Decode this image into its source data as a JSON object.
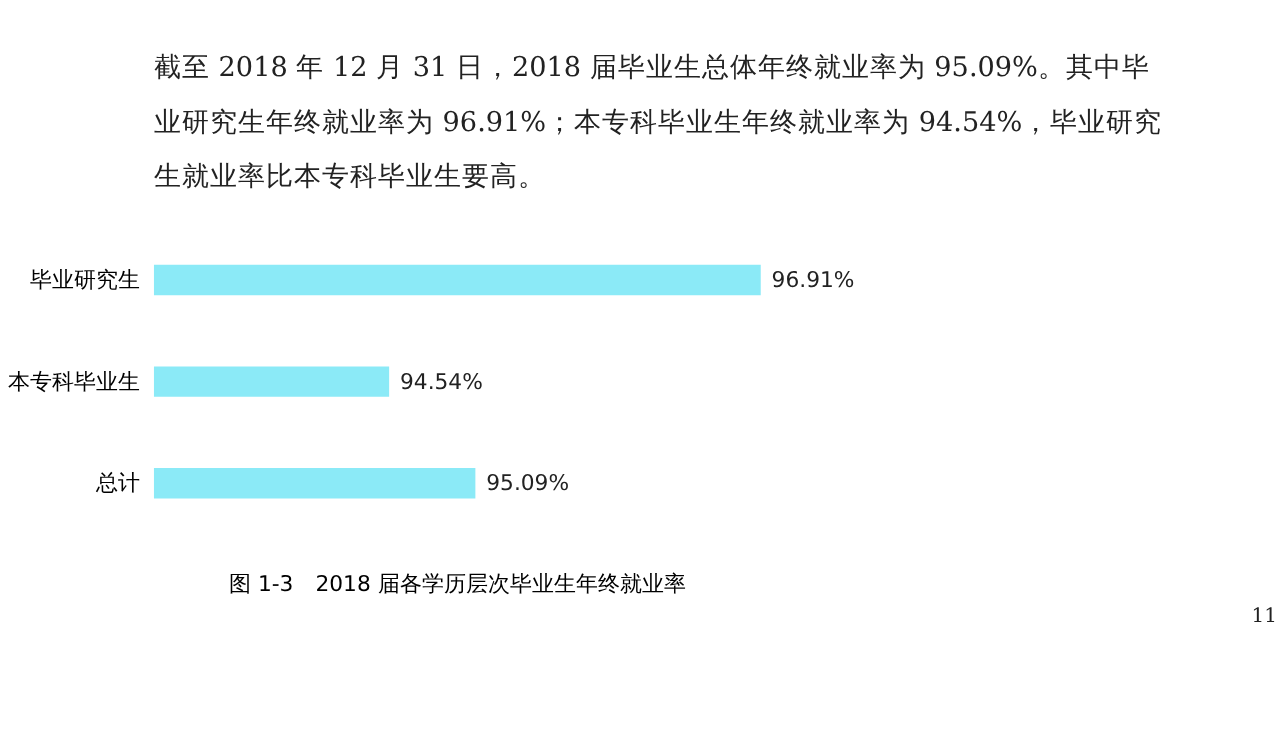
{
  "chart_data": {
    "type": "bar",
    "orientation": "horizontal",
    "title": "图 1-3　2018 届各学历层次毕业生年终就业率",
    "categories": [
      "毕业研究生",
      "本专科毕业生",
      "总计"
    ],
    "values": [
      96.91,
      94.54,
      95.09
    ],
    "value_labels": [
      "96.91%",
      "94.54%",
      "95.09%"
    ],
    "color": "#8beaf7",
    "xlim": [
      93.04,
      96.91
    ],
    "tick_labels": "y",
    "annotations": [
      "　　截至 2018 年 12 月 31 日，2018 届毕业生总体年终就业率为 95.09%。其中毕",
      "业研究生年终就业率为 96.91%；本专科毕业生年终就业率为 94.54%，毕业研究",
      "生就业率比本专科毕业生要高。",
      "11"
    ]
  }
}
